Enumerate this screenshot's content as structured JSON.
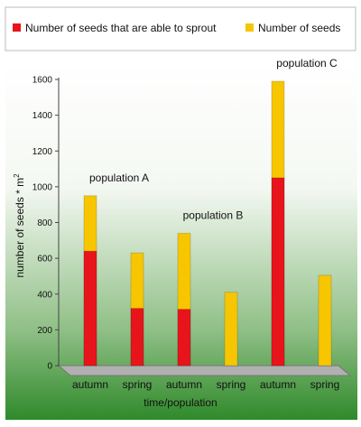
{
  "chart_data": {
    "type": "bar",
    "bar_mode": "overlay",
    "legend_position": "top",
    "categories": [
      "autumn",
      "spring",
      "autumn",
      "spring",
      "autumn",
      "spring"
    ],
    "groups": [
      "population A",
      "population B",
      "population C"
    ],
    "series": [
      {
        "name": "Number of seeds that are able to sprout",
        "color": "#e8141c",
        "values": [
          640,
          320,
          315,
          0,
          1050,
          0
        ]
      },
      {
        "name": "Number of seeds",
        "color": "#f7c600",
        "values": [
          950,
          630,
          740,
          410,
          1590,
          505
        ]
      }
    ],
    "y_label": "number of seeds * m",
    "y_label_superscript": "2",
    "x_label": "time/population",
    "ylim": [
      0,
      1600
    ],
    "yticks": [
      0,
      200,
      400,
      600,
      800,
      1000,
      1200,
      1400,
      1600
    ]
  }
}
